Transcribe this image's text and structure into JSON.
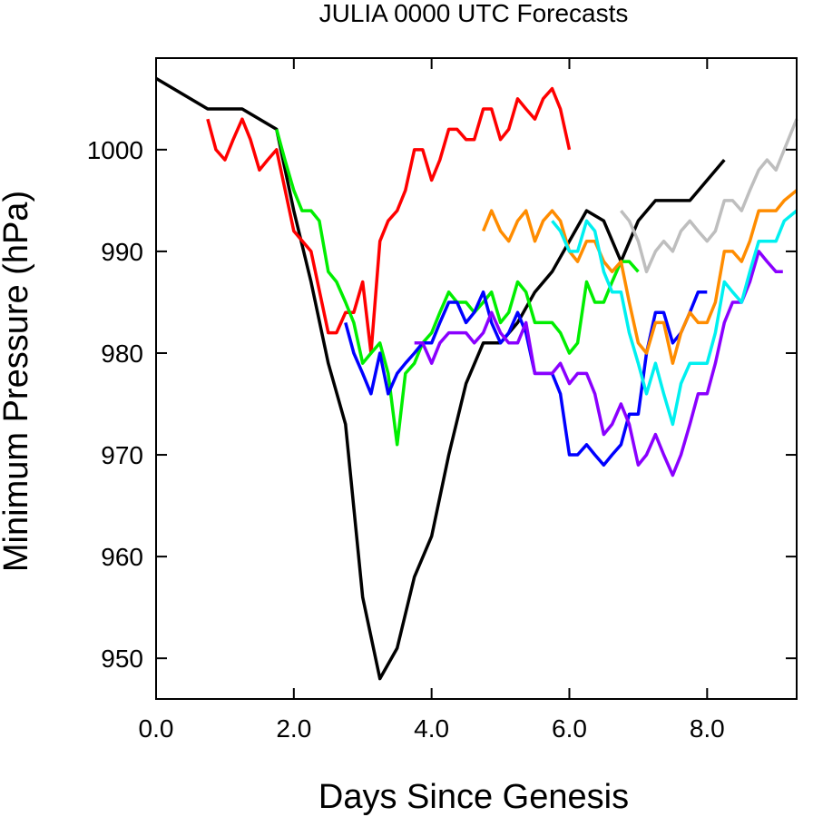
{
  "chart_data": {
    "type": "line",
    "title": "JULIA 0000 UTC Forecasts",
    "xlabel": "Days Since Genesis",
    "ylabel": "Minimum Pressure (hPa)",
    "xlim": [
      0,
      9.3
    ],
    "ylim": [
      946,
      1009
    ],
    "x_ticks": [
      0,
      2,
      4,
      6,
      8
    ],
    "x_tick_labels": [
      "0.0",
      "2.0",
      "4.0",
      "6.0",
      "8.0"
    ],
    "y_ticks": [
      950,
      960,
      970,
      980,
      990,
      1000
    ],
    "y_tick_labels": [
      "950",
      "960",
      "970",
      "980",
      "990",
      "1000"
    ],
    "legend": "none",
    "grid": false,
    "series": [
      {
        "color": "#000000",
        "x": [
          0,
          0.75,
          1.25,
          1.75,
          2.0,
          2.25,
          2.5,
          2.75,
          3.0,
          3.25,
          3.5,
          3.75,
          4.0,
          4.25,
          4.5,
          4.75,
          5.0,
          5.25,
          5.5,
          5.75,
          6.0,
          6.25,
          6.5,
          6.75,
          7.0,
          7.25,
          7.5,
          7.75,
          8.0,
          8.25
        ],
        "y": [
          1007,
          1004,
          1004,
          1002,
          994,
          987,
          979,
          973,
          956,
          948,
          951,
          958,
          962,
          970,
          977,
          981,
          981,
          983,
          986,
          988,
          991,
          994,
          993,
          989,
          993,
          995,
          995,
          995,
          997,
          999
        ]
      },
      {
        "color": "#ff0000",
        "x": [
          0.75,
          0.87,
          1.0,
          1.12,
          1.25,
          1.37,
          1.5,
          1.62,
          1.75,
          2.0,
          2.25,
          2.5,
          2.62,
          2.75,
          2.87,
          3.0,
          3.12,
          3.25,
          3.37,
          3.5,
          3.62,
          3.75,
          3.87,
          4.0,
          4.12,
          4.25,
          4.37,
          4.5,
          4.62,
          4.75,
          4.87,
          5.0,
          5.12,
          5.25,
          5.37,
          5.5,
          5.62,
          5.75,
          5.87,
          6.0
        ],
        "y": [
          1003,
          1000,
          999,
          1001,
          1003,
          1001,
          998,
          999,
          1000,
          992,
          990,
          982,
          982,
          984,
          984,
          987,
          980,
          991,
          993,
          994,
          996,
          1000,
          1000,
          997,
          999,
          1002,
          1002,
          1001,
          1001,
          1004,
          1004,
          1001,
          1002,
          1005,
          1004,
          1003,
          1005,
          1006,
          1004,
          1000
        ]
      },
      {
        "color": "#00ee00",
        "x": [
          1.75,
          1.87,
          2.0,
          2.12,
          2.25,
          2.37,
          2.5,
          2.62,
          2.75,
          2.87,
          3.0,
          3.12,
          3.25,
          3.37,
          3.5,
          3.62,
          3.75,
          3.87,
          4.0,
          4.12,
          4.25,
          4.37,
          4.5,
          4.62,
          4.75,
          4.87,
          5.0,
          5.12,
          5.25,
          5.37,
          5.5,
          5.62,
          5.75,
          5.87,
          6.0,
          6.12,
          6.25,
          6.37,
          6.5,
          6.62,
          6.75,
          6.87,
          7.0
        ],
        "y": [
          1002,
          999,
          996,
          994,
          994,
          993,
          988,
          987,
          985,
          983,
          979,
          980,
          981,
          978,
          971,
          978,
          979,
          981,
          982,
          984,
          986,
          985,
          985,
          984,
          985,
          986,
          983,
          984,
          987,
          986,
          983,
          983,
          983,
          982,
          980,
          981,
          987,
          985,
          985,
          987,
          989,
          989,
          988
        ]
      },
      {
        "color": "#0000ff",
        "x": [
          2.75,
          2.87,
          3.0,
          3.12,
          3.25,
          3.37,
          3.5,
          3.62,
          3.75,
          3.87,
          4.0,
          4.12,
          4.25,
          4.37,
          4.5,
          4.62,
          4.75,
          4.87,
          5.0,
          5.12,
          5.25,
          5.37,
          5.5,
          5.62,
          5.75,
          5.87,
          6.0,
          6.12,
          6.25,
          6.37,
          6.5,
          6.62,
          6.75,
          6.87,
          7.0,
          7.12,
          7.25,
          7.37,
          7.5,
          7.62,
          7.75,
          7.87,
          8.0
        ],
        "y": [
          983,
          980,
          978,
          976,
          980,
          976,
          978,
          979,
          980,
          981,
          981,
          983,
          985,
          985,
          983,
          984,
          986,
          983,
          981,
          982,
          984,
          982,
          978,
          978,
          978,
          976,
          970,
          970,
          971,
          970,
          969,
          970,
          971,
          974,
          974,
          980,
          984,
          984,
          981,
          982,
          984,
          986,
          986
        ]
      },
      {
        "color": "#8a00ff",
        "x": [
          3.75,
          3.87,
          4.0,
          4.12,
          4.25,
          4.37,
          4.5,
          4.62,
          4.75,
          4.87,
          5.0,
          5.12,
          5.25,
          5.37,
          5.5,
          5.62,
          5.75,
          5.87,
          6.0,
          6.12,
          6.25,
          6.37,
          6.5,
          6.62,
          6.75,
          6.87,
          7.0,
          7.12,
          7.25,
          7.37,
          7.5,
          7.62,
          7.75,
          7.87,
          8.0,
          8.12,
          8.25,
          8.37,
          8.5,
          8.62,
          8.75,
          8.87,
          9.0,
          9.1
        ],
        "y": [
          981,
          981,
          979,
          981,
          982,
          982,
          982,
          981,
          982,
          984,
          982,
          981,
          981,
          983,
          978,
          978,
          978,
          979,
          977,
          978,
          978,
          976,
          972,
          973,
          975,
          973,
          969,
          970,
          972,
          970,
          968,
          970,
          973,
          976,
          976,
          979,
          983,
          985,
          985,
          987,
          990,
          989,
          988,
          988
        ]
      },
      {
        "color": "#ff8c00",
        "x": [
          4.75,
          4.87,
          5.0,
          5.12,
          5.25,
          5.37,
          5.5,
          5.62,
          5.75,
          5.87,
          6.0,
          6.12,
          6.25,
          6.37,
          6.5,
          6.62,
          6.75,
          6.87,
          7.0,
          7.12,
          7.25,
          7.37,
          7.5,
          7.62,
          7.75,
          7.87,
          8.0,
          8.12,
          8.25,
          8.37,
          8.5,
          8.62,
          8.75,
          8.87,
          9.0,
          9.12,
          9.3
        ],
        "y": [
          992,
          994,
          992,
          991,
          993,
          994,
          991,
          993,
          994,
          993,
          990,
          989,
          991,
          991,
          989,
          988,
          989,
          985,
          981,
          980,
          983,
          983,
          979,
          982,
          984,
          983,
          983,
          985,
          990,
          990,
          989,
          991,
          994,
          994,
          994,
          995,
          996
        ]
      },
      {
        "color": "#00f0f0",
        "x": [
          5.75,
          5.87,
          6.0,
          6.12,
          6.25,
          6.37,
          6.5,
          6.62,
          6.75,
          6.87,
          7.0,
          7.12,
          7.25,
          7.37,
          7.5,
          7.62,
          7.75,
          7.87,
          8.0,
          8.12,
          8.25,
          8.37,
          8.5,
          8.62,
          8.75,
          8.87,
          9.0,
          9.12,
          9.3
        ],
        "y": [
          993,
          992,
          990,
          990,
          993,
          992,
          988,
          986,
          986,
          982,
          979,
          976,
          979,
          976,
          973,
          977,
          979,
          979,
          979,
          982,
          987,
          986,
          985,
          988,
          991,
          991,
          991,
          993,
          994
        ]
      },
      {
        "color": "#bebebe",
        "x": [
          6.75,
          6.87,
          7.0,
          7.12,
          7.25,
          7.37,
          7.5,
          7.62,
          7.75,
          7.87,
          8.0,
          8.12,
          8.25,
          8.37,
          8.5,
          8.62,
          8.75,
          8.87,
          9.0,
          9.12,
          9.3
        ],
        "y": [
          994,
          993,
          991,
          988,
          990,
          991,
          990,
          992,
          993,
          992,
          991,
          992,
          995,
          995,
          994,
          996,
          998,
          999,
          998,
          1000,
          1003
        ]
      }
    ]
  }
}
